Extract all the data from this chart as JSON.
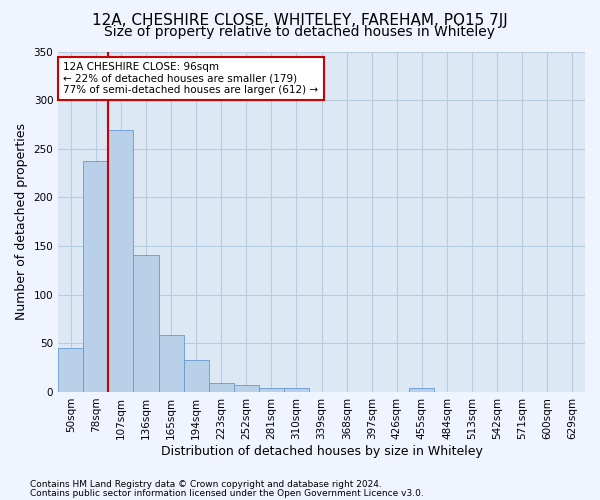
{
  "title": "12A, CHESHIRE CLOSE, WHITELEY, FAREHAM, PO15 7JJ",
  "subtitle": "Size of property relative to detached houses in Whiteley",
  "xlabel": "Distribution of detached houses by size in Whiteley",
  "ylabel": "Number of detached properties",
  "footnote1": "Contains HM Land Registry data © Crown copyright and database right 2024.",
  "footnote2": "Contains public sector information licensed under the Open Government Licence v3.0.",
  "bin_labels": [
    "50sqm",
    "78sqm",
    "107sqm",
    "136sqm",
    "165sqm",
    "194sqm",
    "223sqm",
    "252sqm",
    "281sqm",
    "310sqm",
    "339sqm",
    "368sqm",
    "397sqm",
    "426sqm",
    "455sqm",
    "484sqm",
    "513sqm",
    "542sqm",
    "571sqm",
    "600sqm",
    "629sqm"
  ],
  "bar_heights": [
    45,
    237,
    269,
    141,
    59,
    33,
    9,
    7,
    4,
    4,
    0,
    0,
    0,
    0,
    4,
    0,
    0,
    0,
    0,
    0,
    0
  ],
  "bar_color": "#b8d0e8",
  "bar_edge_color": "#6699cc",
  "vline_pos": 1.5,
  "vline_color": "#cc0000",
  "annotation_text": "12A CHESHIRE CLOSE: 96sqm\n← 22% of detached houses are smaller (179)\n77% of semi-detached houses are larger (612) →",
  "annotation_box_color": "#ffffff",
  "annotation_box_edge": "#cc0000",
  "ylim": [
    0,
    350
  ],
  "yticks": [
    0,
    50,
    100,
    150,
    200,
    250,
    300,
    350
  ],
  "background_color": "#f0f4ff",
  "plot_bg_color": "#dde8f5",
  "grid_color": "#b8cce0",
  "title_fontsize": 11,
  "subtitle_fontsize": 10,
  "axis_label_fontsize": 9,
  "tick_fontsize": 7.5,
  "footnote_fontsize": 6.5
}
